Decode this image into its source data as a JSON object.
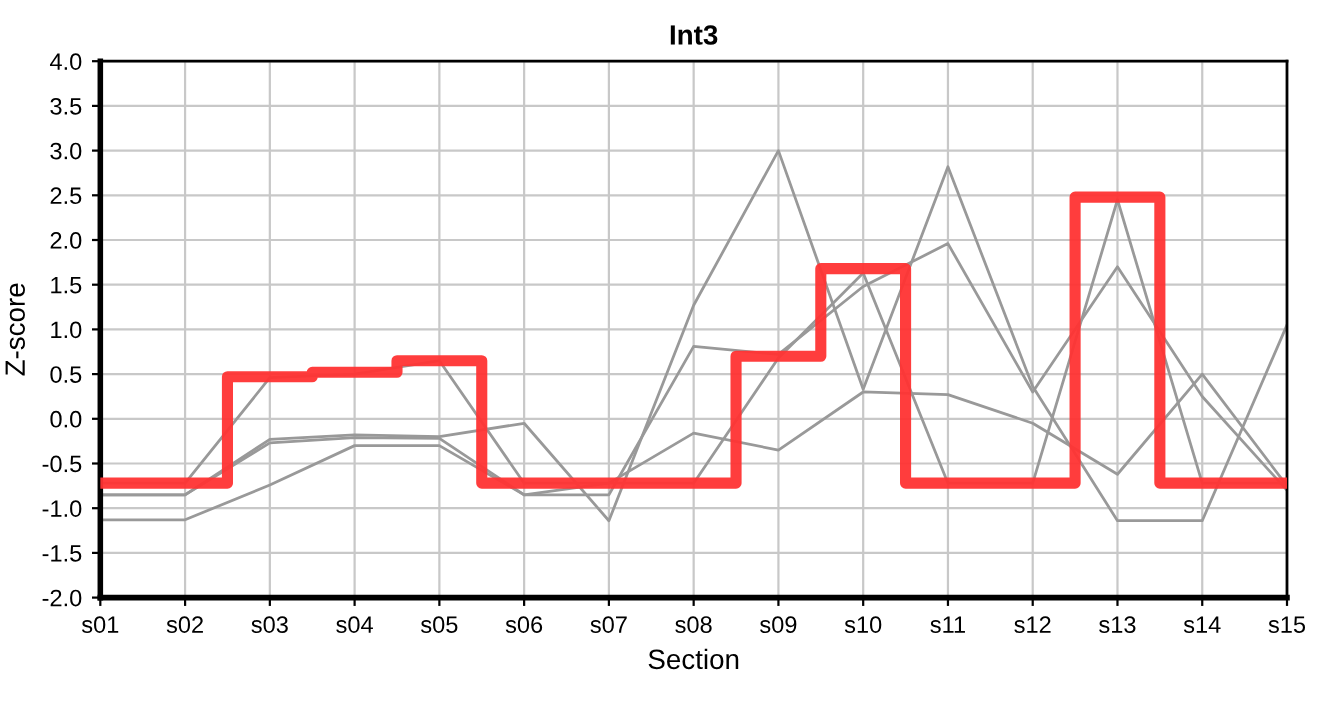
{
  "chart_data": {
    "type": "line",
    "title": "Int3",
    "xlabel": "Section",
    "ylabel": "Z-score",
    "categories": [
      "s01",
      "s02",
      "s03",
      "s04",
      "s05",
      "s06",
      "s07",
      "s08",
      "s09",
      "s10",
      "s11",
      "s12",
      "s13",
      "s14",
      "s15"
    ],
    "series": [
      {
        "color": "#999999",
        "values": [
          -0.85,
          -0.85,
          -0.23,
          -0.18,
          -0.2,
          -0.05,
          -1.14,
          1.27,
          3.0,
          0.33,
          2.82,
          0.36,
          -1.14,
          -1.14,
          1.05
        ]
      },
      {
        "color": "#999999",
        "values": [
          -0.85,
          -0.85,
          -0.27,
          -0.21,
          -0.22,
          -0.85,
          -0.85,
          0.81,
          0.72,
          1.48,
          1.96,
          0.3,
          1.7,
          0.25,
          -0.8
        ]
      },
      {
        "color": "#999999",
        "values": [
          -1.13,
          -1.13,
          -0.74,
          -0.3,
          -0.3,
          -0.85,
          -0.72,
          -0.16,
          -0.35,
          0.3,
          0.27,
          -0.05,
          -0.62,
          0.5,
          -0.75
        ]
      },
      {
        "color": "#999999",
        "values": [
          -0.72,
          -0.72,
          0.46,
          0.5,
          0.65,
          -0.72,
          -0.72,
          -0.72,
          0.68,
          1.63,
          -0.72,
          -0.72,
          2.45,
          -0.72,
          -0.72
        ]
      },
      {
        "type": "step",
        "color": "#ff3333",
        "values": [
          -0.72,
          -0.72,
          0.47,
          0.52,
          0.65,
          -0.72,
          -0.72,
          -0.72,
          0.7,
          1.68,
          -0.72,
          -0.72,
          2.48,
          -0.72,
          -0.72
        ]
      }
    ],
    "ylim": [
      -2.0,
      4.0
    ],
    "yticks": [
      {
        "value": -2.0,
        "label": "-2.0"
      },
      {
        "value": -1.5,
        "label": "-1.5"
      },
      {
        "value": -1.0,
        "label": "-1.0"
      },
      {
        "value": -0.5,
        "label": "-0.5"
      },
      {
        "value": 0.0,
        "label": "0.0"
      },
      {
        "value": 0.5,
        "label": "0.5"
      },
      {
        "value": 1.0,
        "label": "1.0"
      },
      {
        "value": 1.5,
        "label": "1.5"
      },
      {
        "value": 2.0,
        "label": "2.0"
      },
      {
        "value": 2.5,
        "label": "2.5"
      },
      {
        "value": 3.0,
        "label": "3.0"
      },
      {
        "value": 3.5,
        "label": "3.5"
      },
      {
        "value": 4.0,
        "label": "4.0"
      }
    ],
    "grid": true,
    "marker": "none",
    "line_style": "solid",
    "legend": false
  }
}
